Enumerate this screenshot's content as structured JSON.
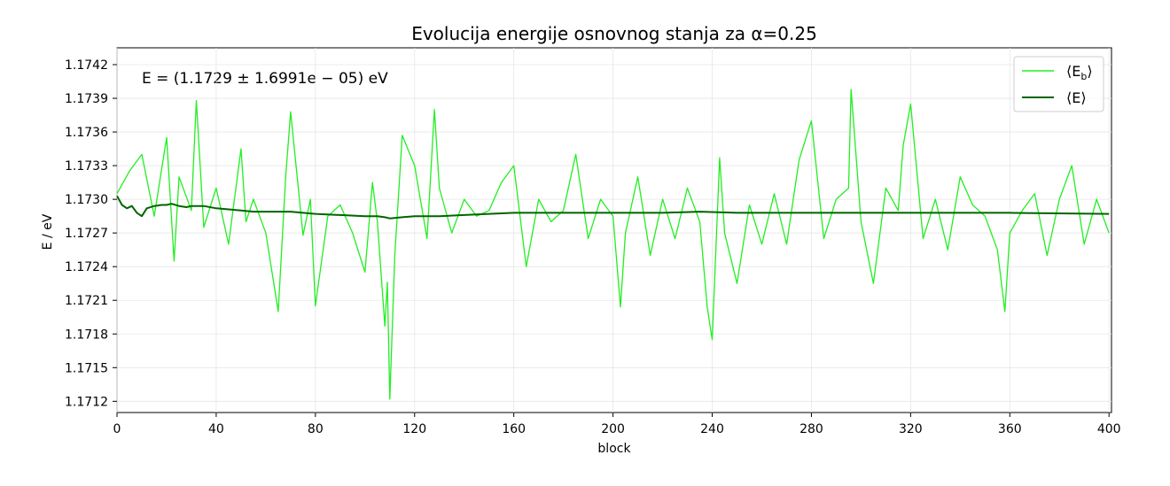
{
  "chart_data": {
    "type": "line",
    "title": "Evolucija energije osnovnog stanja za α=0.25",
    "xlabel": "block",
    "ylabel": "E / eV",
    "annotation": "E = (1.1729 ± 1.6991e − 05) eV",
    "xlim": [
      0,
      401
    ],
    "ylim": [
      1.1711,
      1.17435
    ],
    "x_ticks": [
      "0",
      "40",
      "80",
      "120",
      "160",
      "200",
      "240",
      "280",
      "320",
      "360",
      "400"
    ],
    "x_tick_values": [
      0,
      40,
      80,
      120,
      160,
      200,
      240,
      280,
      320,
      360,
      400
    ],
    "y_ticks": [
      "1.1712",
      "1.1715",
      "1.1718",
      "1.1721",
      "1.1724",
      "1.1727",
      "1.1730",
      "1.1733",
      "1.1736",
      "1.1739",
      "1.1742"
    ],
    "y_tick_values": [
      1.1712,
      1.1715,
      1.1718,
      1.1721,
      1.1724,
      1.1727,
      1.173,
      1.1733,
      1.1736,
      1.1739,
      1.1742
    ],
    "grid": true,
    "legend_position": "top-right",
    "series": [
      {
        "name": "⟨E_b⟩",
        "label_main": "⟨E",
        "label_sub": "b",
        "label_end": "⟩",
        "color": "#22ee22",
        "x": [
          0,
          5,
          10,
          15,
          20,
          23,
          25,
          30,
          32,
          35,
          40,
          45,
          50,
          52,
          55,
          60,
          65,
          68,
          70,
          75,
          78,
          80,
          85,
          90,
          95,
          100,
          103,
          105,
          108,
          109,
          110,
          112,
          115,
          120,
          125,
          128,
          130,
          135,
          140,
          145,
          150,
          155,
          160,
          165,
          170,
          175,
          180,
          185,
          190,
          195,
          200,
          203,
          205,
          210,
          215,
          220,
          225,
          230,
          235,
          238,
          240,
          243,
          245,
          250,
          255,
          260,
          265,
          270,
          275,
          280,
          285,
          290,
          295,
          296,
          300,
          305,
          310,
          315,
          317,
          320,
          325,
          330,
          335,
          340,
          345,
          350,
          355,
          358,
          360,
          365,
          370,
          375,
          380,
          385,
          390,
          395,
          400
        ],
        "values": [
          1.17305,
          1.17325,
          1.1734,
          1.17285,
          1.17355,
          1.17245,
          1.1732,
          1.1729,
          1.17388,
          1.17275,
          1.1731,
          1.1726,
          1.17345,
          1.1728,
          1.173,
          1.1727,
          1.172,
          1.1732,
          1.17378,
          1.17268,
          1.173,
          1.17205,
          1.17285,
          1.17295,
          1.1727,
          1.17235,
          1.17315,
          1.1728,
          1.17187,
          1.17226,
          1.17122,
          1.1725,
          1.17357,
          1.1733,
          1.17265,
          1.1738,
          1.1731,
          1.1727,
          1.173,
          1.17285,
          1.1729,
          1.17315,
          1.1733,
          1.1724,
          1.173,
          1.1728,
          1.1729,
          1.1734,
          1.17265,
          1.173,
          1.17285,
          1.17204,
          1.1727,
          1.1732,
          1.1725,
          1.173,
          1.17265,
          1.1731,
          1.1728,
          1.17204,
          1.17175,
          1.17337,
          1.1727,
          1.17225,
          1.17295,
          1.1726,
          1.17305,
          1.1726,
          1.17335,
          1.1737,
          1.17265,
          1.173,
          1.1731,
          1.17398,
          1.1728,
          1.17225,
          1.1731,
          1.1729,
          1.17348,
          1.17385,
          1.17265,
          1.173,
          1.17255,
          1.1732,
          1.17295,
          1.17285,
          1.17255,
          1.172,
          1.1727,
          1.1729,
          1.17305,
          1.1725,
          1.173,
          1.1733,
          1.1726,
          1.173,
          1.1727
        ]
      },
      {
        "name": "⟨E⟩",
        "label_main": "⟨E",
        "label_sub": "",
        "label_end": "⟩",
        "color": "#006400",
        "x": [
          0,
          2,
          4,
          6,
          8,
          10,
          12,
          15,
          18,
          20,
          22,
          25,
          28,
          30,
          35,
          40,
          45,
          50,
          55,
          60,
          65,
          70,
          75,
          80,
          90,
          100,
          105,
          108,
          110,
          115,
          120,
          130,
          140,
          150,
          160,
          170,
          180,
          200,
          220,
          235,
          250,
          280,
          320,
          360,
          400
        ],
        "values": [
          1.17303,
          1.17295,
          1.17292,
          1.17294,
          1.17288,
          1.17285,
          1.17292,
          1.17294,
          1.17295,
          1.17295,
          1.17296,
          1.17294,
          1.17293,
          1.17294,
          1.17294,
          1.17292,
          1.17291,
          1.1729,
          1.17289,
          1.17289,
          1.17289,
          1.17289,
          1.17288,
          1.17287,
          1.17286,
          1.17285,
          1.17285,
          1.17284,
          1.17283,
          1.17284,
          1.17285,
          1.17285,
          1.17286,
          1.17287,
          1.17288,
          1.17288,
          1.17288,
          1.17288,
          1.17288,
          1.17289,
          1.17288,
          1.17288,
          1.17288,
          1.17288,
          1.17287
        ]
      }
    ]
  }
}
